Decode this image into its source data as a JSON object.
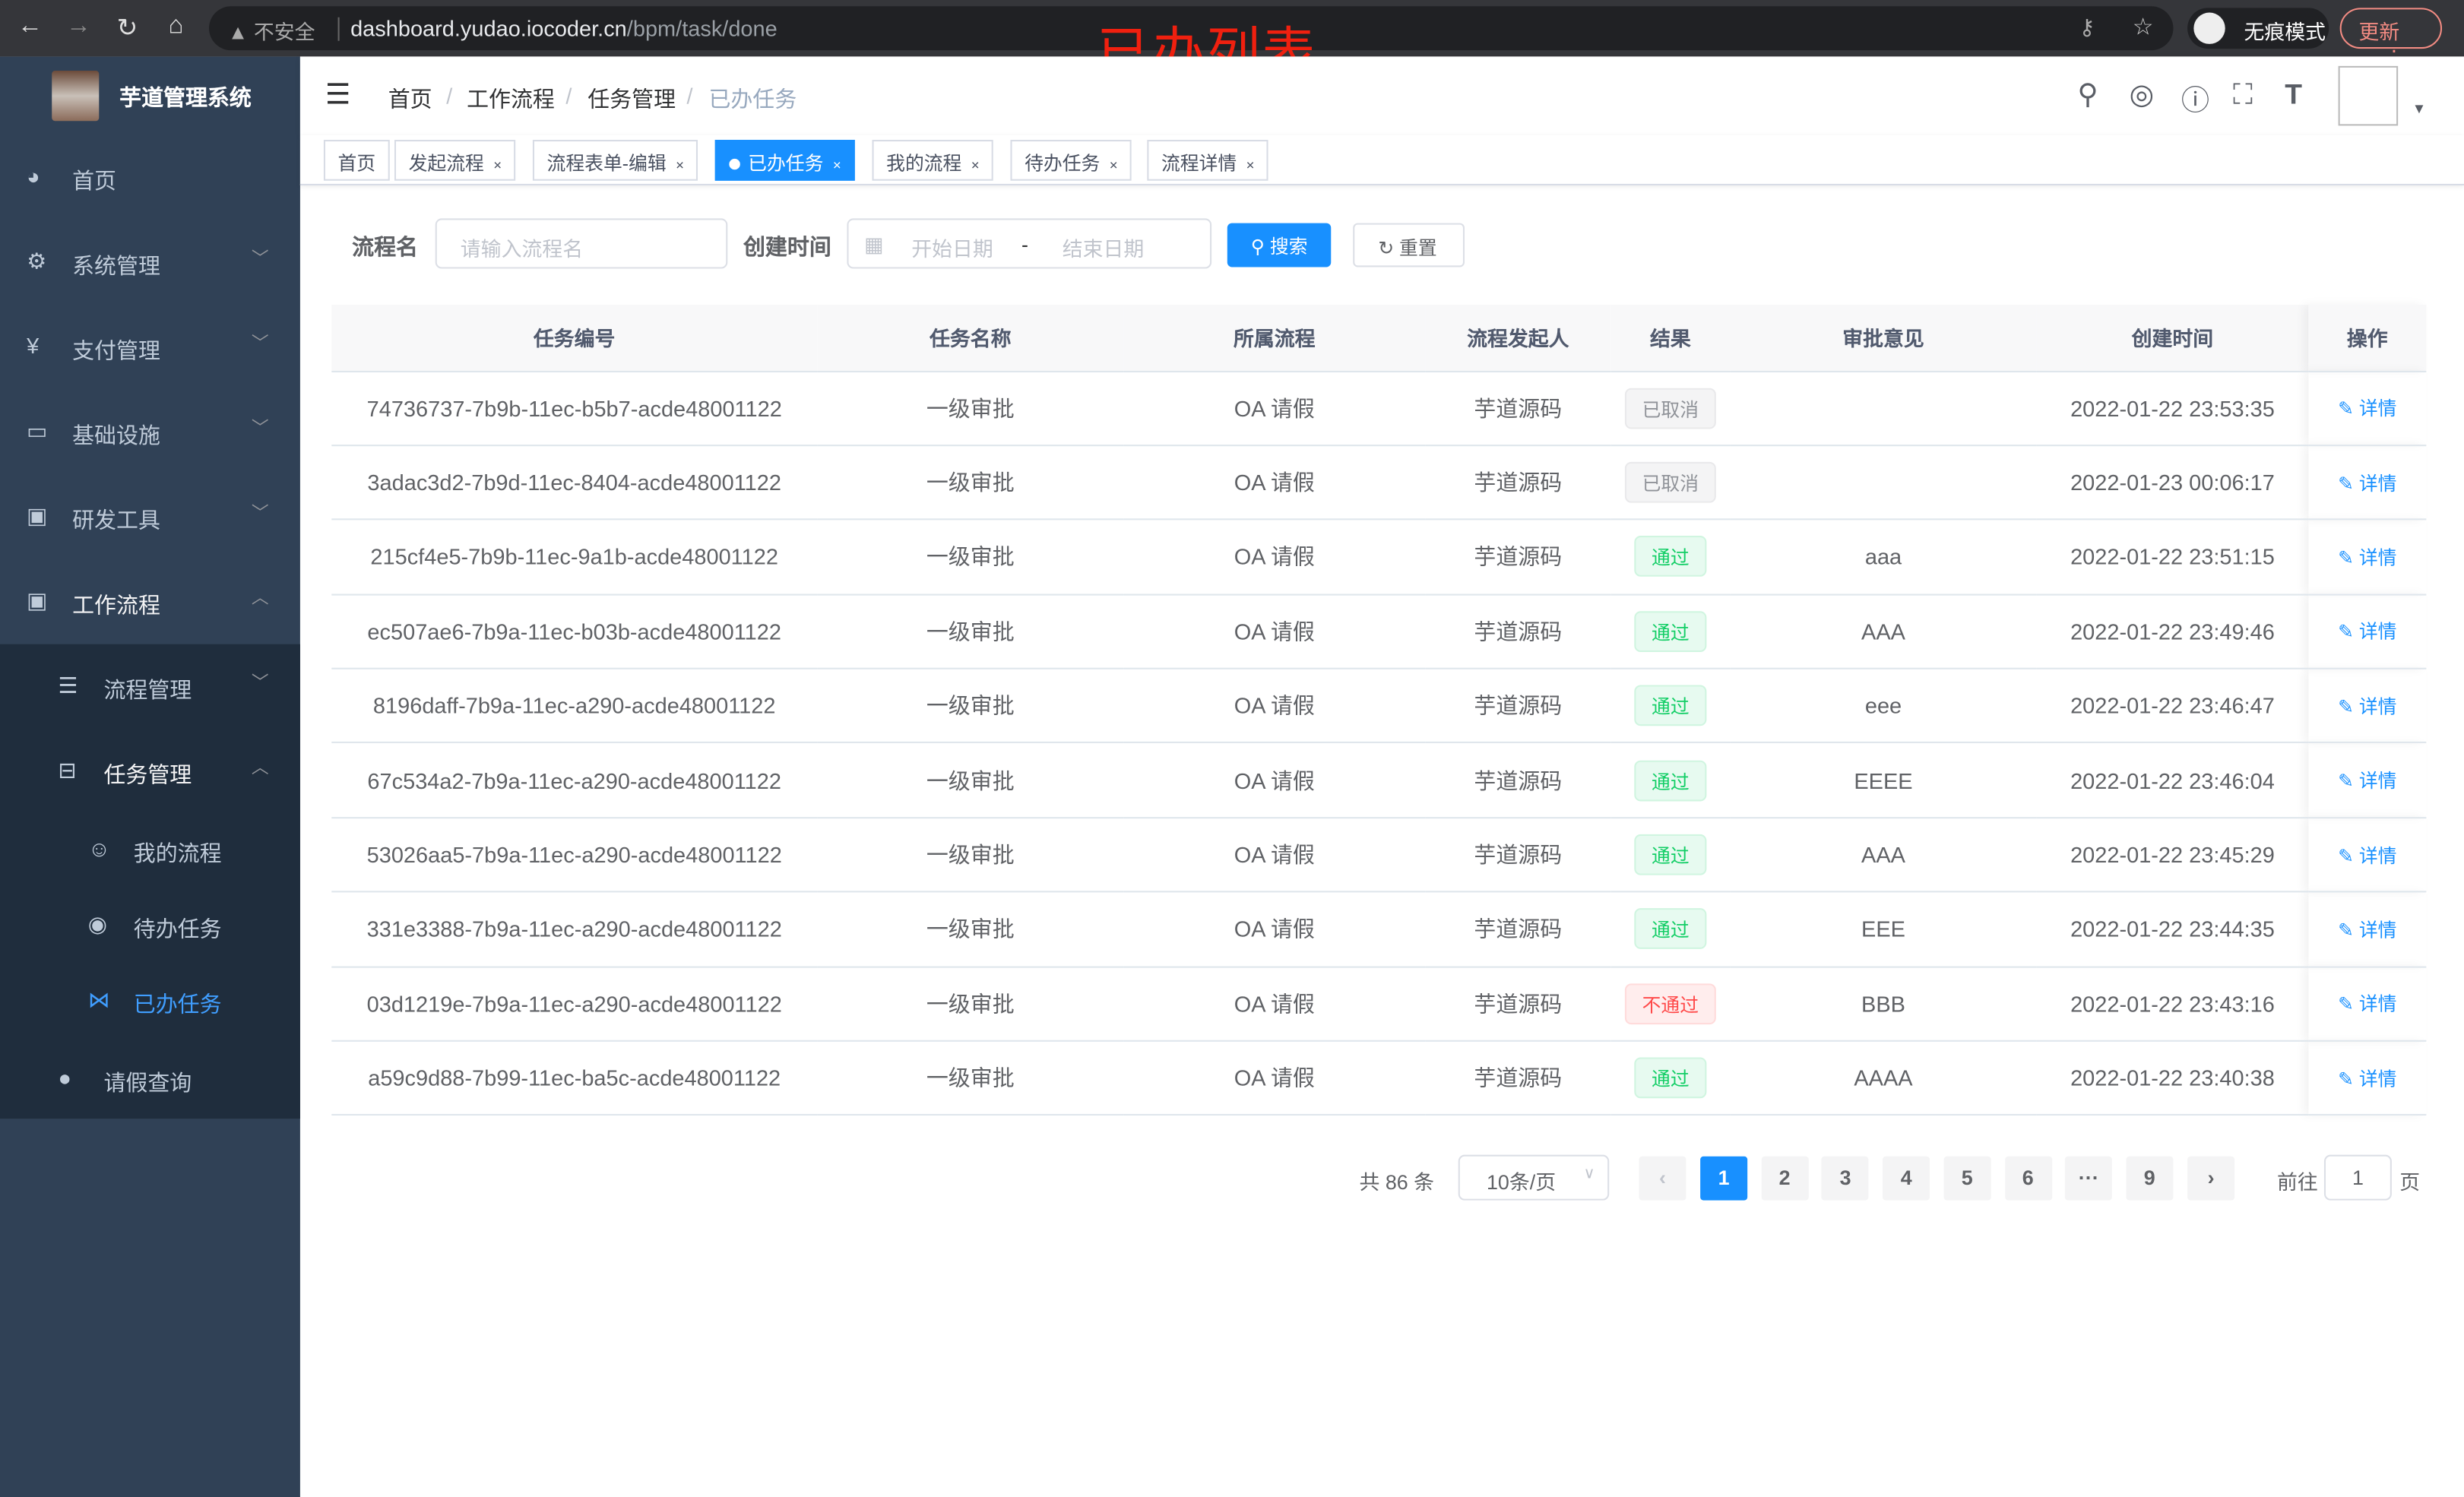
{
  "browser": {
    "security": "不安全",
    "url_host": "dashboard.yudao.iocoder.cn",
    "url_path": "/bpm/task/done",
    "incognito": "无痕模式",
    "update": "更新"
  },
  "overlay_title": "已办列表",
  "sidebar": {
    "title": "芋道管理系统",
    "items": [
      {
        "label": "首页",
        "icon": "dashboard-icon"
      },
      {
        "label": "系统管理",
        "icon": "gear-icon"
      },
      {
        "label": "支付管理",
        "icon": "yen-icon"
      },
      {
        "label": "基础设施",
        "icon": "monitor-icon"
      },
      {
        "label": "研发工具",
        "icon": "toolbox-icon"
      },
      {
        "label": "工作流程",
        "icon": "toolbox-icon"
      },
      {
        "label": "流程管理",
        "icon": "list-icon"
      },
      {
        "label": "任务管理",
        "icon": "tree-icon"
      },
      {
        "label": "我的流程",
        "icon": "chat-icon"
      },
      {
        "label": "待办任务",
        "icon": "eye-icon"
      },
      {
        "label": "已办任务",
        "icon": "check-icon"
      },
      {
        "label": "请假查询",
        "icon": "user-icon"
      }
    ]
  },
  "breadcrumb": [
    "首页",
    "工作流程",
    "任务管理",
    "已办任务"
  ],
  "tags": [
    "首页",
    "发起流程",
    "流程表单-编辑",
    "已办任务",
    "我的流程",
    "待办任务",
    "流程详情"
  ],
  "search": {
    "name_label": "流程名",
    "name_placeholder": "请输入流程名",
    "time_label": "创建时间",
    "start_placeholder": "开始日期",
    "range_sep": "-",
    "end_placeholder": "结束日期",
    "search_btn": "搜索",
    "reset_btn": "重置"
  },
  "table": {
    "headers": [
      "任务编号",
      "任务名称",
      "所属流程",
      "流程发起人",
      "结果",
      "审批意见",
      "创建时间",
      "操作"
    ],
    "rows": [
      {
        "id": "74736737-7b9b-11ec-b5b7-acde48001122",
        "name": "一级审批",
        "process": "OA 请假",
        "starter": "芋道源码",
        "result": "已取消",
        "result_type": "cancel",
        "comment": "",
        "time": "2022-01-22 23:53:35",
        "op": "详情"
      },
      {
        "id": "3adac3d2-7b9d-11ec-8404-acde48001122",
        "name": "一级审批",
        "process": "OA 请假",
        "starter": "芋道源码",
        "result": "已取消",
        "result_type": "cancel",
        "comment": "",
        "time": "2022-01-23 00:06:17",
        "op": "详情"
      },
      {
        "id": "215cf4e5-7b9b-11ec-9a1b-acde48001122",
        "name": "一级审批",
        "process": "OA 请假",
        "starter": "芋道源码",
        "result": "通过",
        "result_type": "pass",
        "comment": "aaa",
        "time": "2022-01-22 23:51:15",
        "op": "详情"
      },
      {
        "id": "ec507ae6-7b9a-11ec-b03b-acde48001122",
        "name": "一级审批",
        "process": "OA 请假",
        "starter": "芋道源码",
        "result": "通过",
        "result_type": "pass",
        "comment": "AAA",
        "time": "2022-01-22 23:49:46",
        "op": "详情"
      },
      {
        "id": "8196daff-7b9a-11ec-a290-acde48001122",
        "name": "一级审批",
        "process": "OA 请假",
        "starter": "芋道源码",
        "result": "通过",
        "result_type": "pass",
        "comment": "eee",
        "time": "2022-01-22 23:46:47",
        "op": "详情"
      },
      {
        "id": "67c534a2-7b9a-11ec-a290-acde48001122",
        "name": "一级审批",
        "process": "OA 请假",
        "starter": "芋道源码",
        "result": "通过",
        "result_type": "pass",
        "comment": "EEEE",
        "time": "2022-01-22 23:46:04",
        "op": "详情"
      },
      {
        "id": "53026aa5-7b9a-11ec-a290-acde48001122",
        "name": "一级审批",
        "process": "OA 请假",
        "starter": "芋道源码",
        "result": "通过",
        "result_type": "pass",
        "comment": "AAA",
        "time": "2022-01-22 23:45:29",
        "op": "详情"
      },
      {
        "id": "331e3388-7b9a-11ec-a290-acde48001122",
        "name": "一级审批",
        "process": "OA 请假",
        "starter": "芋道源码",
        "result": "通过",
        "result_type": "pass",
        "comment": "EEE",
        "time": "2022-01-22 23:44:35",
        "op": "详情"
      },
      {
        "id": "03d1219e-7b9a-11ec-a290-acde48001122",
        "name": "一级审批",
        "process": "OA 请假",
        "starter": "芋道源码",
        "result": "不通过",
        "result_type": "fail",
        "comment": "BBB",
        "time": "2022-01-22 23:43:16",
        "op": "详情"
      },
      {
        "id": "a59c9d88-7b99-11ec-ba5c-acde48001122",
        "name": "一级审批",
        "process": "OA 请假",
        "starter": "芋道源码",
        "result": "通过",
        "result_type": "pass",
        "comment": "AAAA",
        "time": "2022-01-22 23:40:38",
        "op": "详情"
      }
    ]
  },
  "pagination": {
    "total": "共 86 条",
    "page_size": "10条/页",
    "pages": [
      "1",
      "2",
      "3",
      "4",
      "5",
      "6",
      "···",
      "9"
    ],
    "current": "1",
    "goto_label": "前往",
    "goto_value": "1",
    "goto_suffix": "页"
  },
  "colors": {
    "primary": "#1890ff",
    "sidebar": "#304156",
    "submenu": "#1f2d3d",
    "overlay": "#f0200f"
  }
}
